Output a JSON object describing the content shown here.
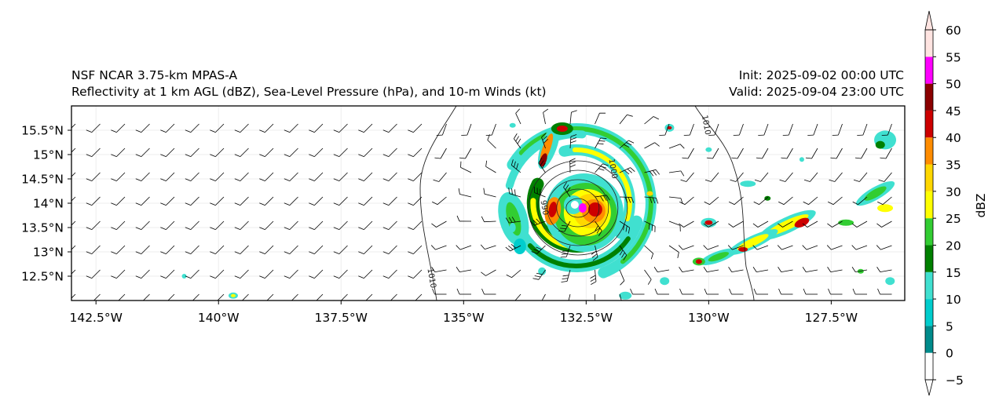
{
  "titles": {
    "model": "NSF NCAR 3.75-km MPAS-A",
    "fields": "Reflectivity at 1 km AGL (dBZ), Sea-Level Pressure (hPa), and 10-m Winds (kt)",
    "init": "Init: 2025-09-02 00:00 UTC",
    "valid": "Valid: 2025-09-04 23:00 UTC"
  },
  "map": {
    "lon_range": [
      -143.0,
      -126.0
    ],
    "lat_range": [
      12.0,
      16.0
    ],
    "lon_ticks": [
      {
        "value": -142.5,
        "label": "142.5°W"
      },
      {
        "value": -140.0,
        "label": "140°W"
      },
      {
        "value": -137.5,
        "label": "137.5°W"
      },
      {
        "value": -135.0,
        "label": "135°W"
      },
      {
        "value": -132.5,
        "label": "132.5°W"
      },
      {
        "value": -130.0,
        "label": "130°W"
      },
      {
        "value": -127.5,
        "label": "127.5°W"
      }
    ],
    "lat_ticks": [
      {
        "value": 12.5,
        "label": "12.5°N"
      },
      {
        "value": 13.0,
        "label": "13°N"
      },
      {
        "value": 13.5,
        "label": "13.5°N"
      },
      {
        "value": 14.0,
        "label": "14°N"
      },
      {
        "value": 14.5,
        "label": "14.5°N"
      },
      {
        "value": 15.0,
        "label": "15°N"
      },
      {
        "value": 15.5,
        "label": "15.5°N"
      }
    ],
    "storm_center": {
      "lon": -132.7,
      "lat": 14.0
    },
    "isobars": [
      {
        "label": "1010",
        "label_lon": -135.7,
        "label_lat": 12.45
      },
      {
        "label": "1010",
        "label_lon": -130.1,
        "label_lat": 15.6
      },
      {
        "label": "1000",
        "label_lon": -132.0,
        "label_lat": 14.7
      },
      {
        "label": "990",
        "label_lon": -133.4,
        "label_lat": 13.9
      }
    ]
  },
  "colorbar": {
    "label": "dBZ",
    "levels": [
      -5,
      0,
      5,
      10,
      15,
      20,
      25,
      30,
      35,
      40,
      45,
      50,
      55,
      60
    ],
    "tick_labels": [
      "−5",
      "0",
      "5",
      "10",
      "15",
      "20",
      "25",
      "30",
      "35",
      "40",
      "45",
      "50",
      "55",
      "60"
    ],
    "colors": [
      "#ffffff",
      "#008b8b",
      "#00cdcd",
      "#40e0d0",
      "#008000",
      "#32cd32",
      "#ffff00",
      "#ffd700",
      "#ff8c00",
      "#cd0000",
      "#8b0000",
      "#ff00ff",
      "#ffe4e1"
    ]
  }
}
